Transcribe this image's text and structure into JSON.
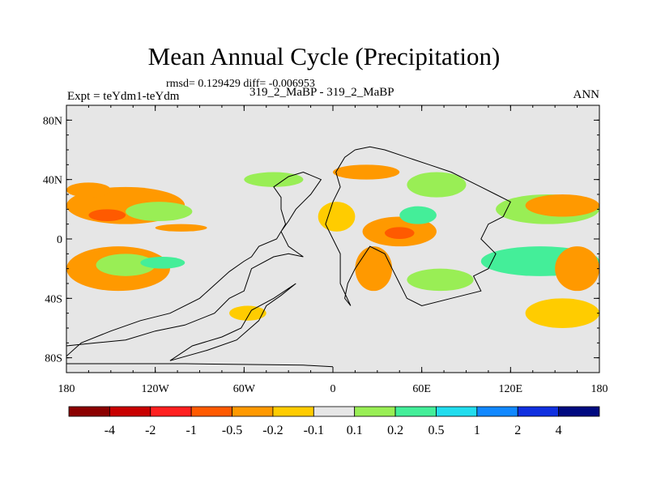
{
  "chart_data": {
    "type": "heatmap",
    "title": "Mean Annual Cycle (Precipitation)",
    "subtitle_stats": "rmsd= 0.129429 diff= -0.006953",
    "left_label": "Expt = teYdm1-teYdm",
    "center_label": "319_2_MaBP - 319_2_MaBP",
    "right_label": "ANN",
    "xlim": [
      -180,
      180
    ],
    "ylim": [
      -90,
      90
    ],
    "x_ticks": [
      {
        "value": -180,
        "label": "180"
      },
      {
        "value": -120,
        "label": "120W"
      },
      {
        "value": -60,
        "label": "60W"
      },
      {
        "value": 0,
        "label": "0"
      },
      {
        "value": 60,
        "label": "60E"
      },
      {
        "value": 120,
        "label": "120E"
      },
      {
        "value": 180,
        "label": "180"
      }
    ],
    "y_ticks": [
      {
        "value": 80,
        "label": "80N"
      },
      {
        "value": 40,
        "label": "40N"
      },
      {
        "value": 0,
        "label": "0"
      },
      {
        "value": -40,
        "label": "40S"
      },
      {
        "value": -80,
        "label": "80S"
      }
    ],
    "colorbar": {
      "levels": [
        "-4",
        "-2",
        "-1",
        "-0.5",
        "-0.2",
        "-0.1",
        "0.1",
        "0.2",
        "0.5",
        "1",
        "2",
        "4"
      ],
      "colors": [
        "#8b0000",
        "#c80000",
        "#ff2020",
        "#ff5a00",
        "#ff9900",
        "#ffcc00",
        "#e6e6e6",
        "#99ee55",
        "#44ee99",
        "#22ddee",
        "#1188ff",
        "#1030e0",
        "#000a80"
      ]
    },
    "background_color": "#e6e6e6",
    "anomaly_regions": [
      {
        "name": "north-pacific-band",
        "lon": [
          -180,
          -100
        ],
        "lat": [
          10,
          35
        ],
        "bin": 4
      },
      {
        "name": "central-pacific-core",
        "lon": [
          -165,
          -140
        ],
        "lat": [
          12,
          20
        ],
        "bin": 3
      },
      {
        "name": "central-pacific-green",
        "lon": [
          -140,
          -95
        ],
        "lat": [
          12,
          25
        ],
        "bin": 7
      },
      {
        "name": "north-pacific-patch",
        "lon": [
          -180,
          -150
        ],
        "lat": [
          28,
          38
        ],
        "bin": 4
      },
      {
        "name": "mid-pacific-strip",
        "lon": [
          -120,
          -85
        ],
        "lat": [
          5,
          10
        ],
        "bin": 4
      },
      {
        "name": "south-pacific-band",
        "lon": [
          -180,
          -110
        ],
        "lat": [
          -35,
          -5
        ],
        "bin": 4
      },
      {
        "name": "south-pacific-green",
        "lon": [
          -160,
          -120
        ],
        "lat": [
          -25,
          -10
        ],
        "bin": 7
      },
      {
        "name": "south-pacific-cyan",
        "lon": [
          -130,
          -100
        ],
        "lat": [
          -20,
          -12
        ],
        "bin": 8
      },
      {
        "name": "africa-tropics",
        "lon": [
          20,
          70
        ],
        "lat": [
          -5,
          15
        ],
        "bin": 4
      },
      {
        "name": "africa-core",
        "lon": [
          35,
          55
        ],
        "lat": [
          0,
          8
        ],
        "bin": 3
      },
      {
        "name": "arabian-green",
        "lon": [
          45,
          70
        ],
        "lat": [
          10,
          22
        ],
        "bin": 8
      },
      {
        "name": "north-africa-patch",
        "lon": [
          -10,
          15
        ],
        "lat": [
          5,
          25
        ],
        "bin": 5
      },
      {
        "name": "west-africa-south",
        "lon": [
          15,
          40
        ],
        "lat": [
          -35,
          -5
        ],
        "bin": 4
      },
      {
        "name": "south-atlantic-patch",
        "lon": [
          -70,
          -45
        ],
        "lat": [
          -55,
          -45
        ],
        "bin": 5
      },
      {
        "name": "indian-ocean-green",
        "lon": [
          50,
          95
        ],
        "lat": [
          -35,
          -20
        ],
        "bin": 7
      },
      {
        "name": "asia-north-patch",
        "lon": [
          50,
          90
        ],
        "lat": [
          28,
          45
        ],
        "bin": 7
      },
      {
        "name": "west-pacific-green",
        "lon": [
          110,
          180
        ],
        "lat": [
          10,
          30
        ],
        "bin": 7
      },
      {
        "name": "west-pacific-orange",
        "lon": [
          130,
          180
        ],
        "lat": [
          15,
          30
        ],
        "bin": 4
      },
      {
        "name": "west-pacific-south",
        "lon": [
          100,
          180
        ],
        "lat": [
          -25,
          -5
        ],
        "bin": 8
      },
      {
        "name": "west-pacific-south-orange",
        "lon": [
          150,
          180
        ],
        "lat": [
          -35,
          -5
        ],
        "bin": 4
      },
      {
        "name": "australia-south",
        "lon": [
          130,
          180
        ],
        "lat": [
          -60,
          -40
        ],
        "bin": 5
      },
      {
        "name": "north-atlantic",
        "lon": [
          -60,
          -20
        ],
        "lat": [
          35,
          45
        ],
        "bin": 7
      },
      {
        "name": "europe-patch",
        "lon": [
          0,
          45
        ],
        "lat": [
          40,
          50
        ],
        "bin": 4
      }
    ],
    "continent_outlines": [
      {
        "name": "north-america",
        "points": [
          [
            -180,
            -79
          ],
          [
            -180,
            -72
          ],
          [
            -160,
            -70
          ],
          [
            -140,
            -68
          ],
          [
            -120,
            -62
          ],
          [
            -100,
            -58
          ],
          [
            -80,
            -50
          ],
          [
            -70,
            -40
          ],
          [
            -60,
            -35
          ],
          [
            -55,
            -20
          ],
          [
            -40,
            -12
          ],
          [
            -30,
            -10
          ],
          [
            -20,
            -12
          ],
          [
            -30,
            -5
          ],
          [
            -35,
            5
          ],
          [
            -30,
            12
          ],
          [
            -25,
            20
          ],
          [
            -20,
            25
          ],
          [
            -15,
            30
          ],
          [
            -8,
            40
          ],
          [
            -20,
            45
          ],
          [
            -30,
            42
          ],
          [
            -40,
            35
          ],
          [
            -35,
            28
          ],
          [
            -35,
            20
          ],
          [
            -32,
            10
          ],
          [
            -38,
            0
          ],
          [
            -50,
            -5
          ],
          [
            -55,
            -12
          ],
          [
            -60,
            -15
          ],
          [
            -70,
            -22
          ],
          [
            -90,
            -40
          ],
          [
            -110,
            -50
          ],
          [
            -130,
            -55
          ],
          [
            -150,
            -62
          ],
          [
            -170,
            -70
          ],
          [
            -180,
            -79
          ]
        ]
      },
      {
        "name": "south-america",
        "points": [
          [
            -110,
            -82
          ],
          [
            -85,
            -75
          ],
          [
            -65,
            -68
          ],
          [
            -50,
            -55
          ],
          [
            -45,
            -45
          ],
          [
            -35,
            -38
          ],
          [
            -25,
            -30
          ],
          [
            -40,
            -40
          ],
          [
            -55,
            -48
          ],
          [
            -62,
            -60
          ],
          [
            -75,
            -66
          ],
          [
            -95,
            -72
          ],
          [
            -110,
            -82
          ]
        ]
      },
      {
        "name": "africa-eurasia",
        "points": [
          [
            15,
            60
          ],
          [
            25,
            62
          ],
          [
            35,
            60
          ],
          [
            50,
            55
          ],
          [
            65,
            50
          ],
          [
            80,
            45
          ],
          [
            90,
            40
          ],
          [
            100,
            35
          ],
          [
            110,
            30
          ],
          [
            120,
            25
          ],
          [
            115,
            15
          ],
          [
            105,
            10
          ],
          [
            100,
            0
          ],
          [
            110,
            -10
          ],
          [
            105,
            -20
          ],
          [
            95,
            -25
          ],
          [
            100,
            -35
          ],
          [
            80,
            -40
          ],
          [
            60,
            -45
          ],
          [
            50,
            -40
          ],
          [
            45,
            -30
          ],
          [
            40,
            -20
          ],
          [
            35,
            -10
          ],
          [
            25,
            -5
          ],
          [
            15,
            -20
          ],
          [
            10,
            -30
          ],
          [
            8,
            -40
          ],
          [
            12,
            -45
          ],
          [
            5,
            -30
          ],
          [
            5,
            -10
          ],
          [
            0,
            0
          ],
          [
            -5,
            10
          ],
          [
            0,
            25
          ],
          [
            5,
            35
          ],
          [
            2,
            45
          ],
          [
            8,
            55
          ],
          [
            15,
            60
          ]
        ]
      },
      {
        "name": "antarctic-edge",
        "points": [
          [
            -180,
            -84
          ],
          [
            -100,
            -84
          ],
          [
            -20,
            -85
          ],
          [
            0,
            -86
          ]
        ]
      }
    ]
  }
}
